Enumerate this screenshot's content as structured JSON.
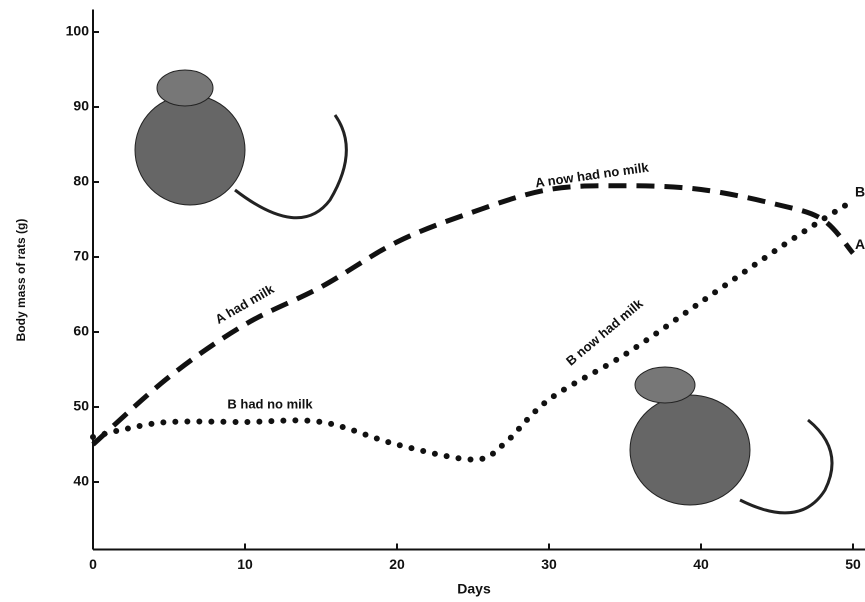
{
  "chart_data": {
    "type": "line",
    "x_label": "Days",
    "y_label": "Body mass of rats (g)",
    "xlim": [
      0,
      50.5
    ],
    "ylim": [
      31,
      103
    ],
    "xticks": [
      0,
      10,
      20,
      30,
      40,
      50
    ],
    "yticks": [
      40,
      50,
      60,
      70,
      80,
      90,
      100
    ],
    "series": [
      {
        "name": "A",
        "color": "#111111",
        "style": "dashed",
        "x": [
          0,
          5,
          10,
          15,
          20,
          25,
          30,
          35,
          40,
          45,
          48,
          50
        ],
        "values": [
          45,
          54,
          61,
          66,
          72,
          76,
          79,
          79.5,
          79,
          77,
          75,
          70.5
        ]
      },
      {
        "name": "B",
        "color": "#111111",
        "style": "dotted",
        "x": [
          0,
          2,
          5,
          10,
          15,
          20,
          25,
          27,
          30,
          35,
          40,
          45,
          48,
          50
        ],
        "values": [
          46,
          47,
          48,
          48,
          48,
          45,
          43,
          45,
          51,
          57,
          64,
          71,
          75,
          77.5
        ]
      }
    ],
    "annotations": [
      "A had milk",
      "A now had no milk",
      "B had no milk",
      "B now had milk"
    ]
  }
}
